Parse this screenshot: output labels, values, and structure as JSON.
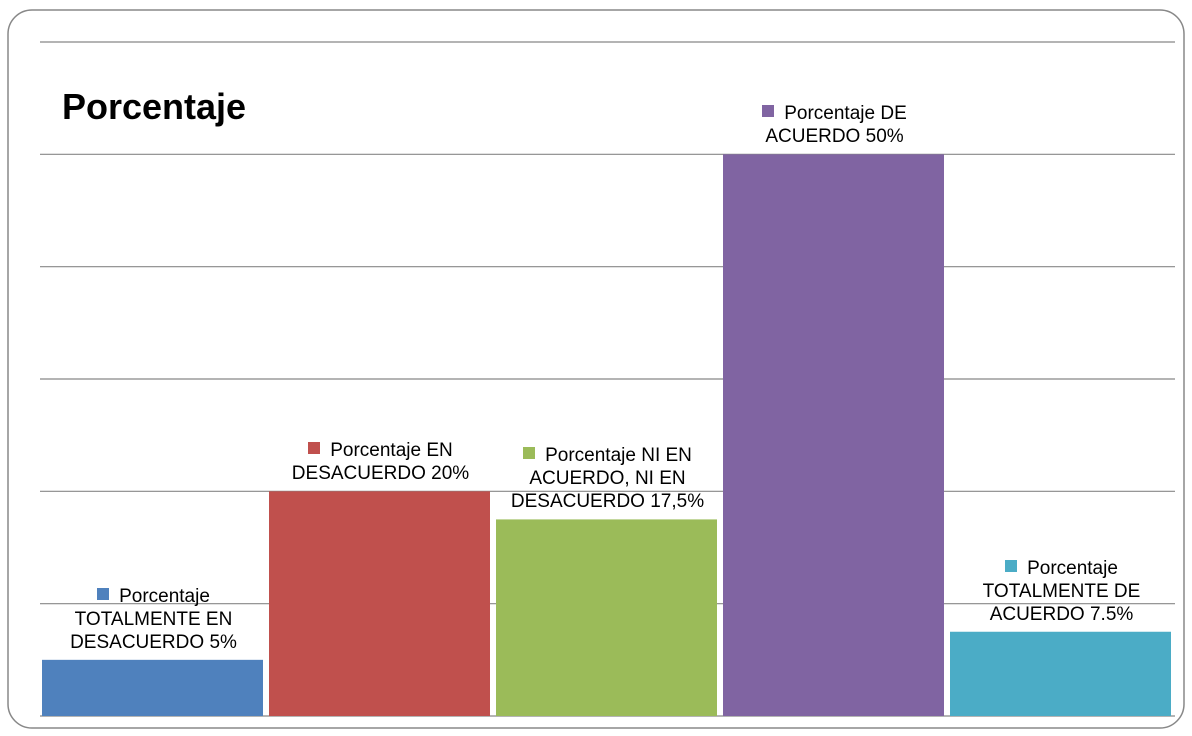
{
  "chart_data": {
    "type": "bar",
    "title": "Porcentaje",
    "categories": [
      "TOTALMENTE EN DESACUERDO",
      "EN DESACUERDO",
      "NI EN ACUERDO, NI EN DESACUERDO",
      "DE ACUERDO",
      "TOTALMENTE DE ACUERDO"
    ],
    "series": [
      {
        "name": "Porcentaje",
        "values": [
          5,
          20,
          17.5,
          50,
          7.5
        ],
        "value_labels": [
          "5%",
          "20%",
          "17,5%",
          "50%",
          "7.5%"
        ],
        "colors": [
          "#4f81bd",
          "#c0504d",
          "#9bbb59",
          "#8064a2",
          "#4bacc6"
        ]
      }
    ],
    "ylim": [
      0,
      60
    ],
    "yticks": [
      0,
      10,
      20,
      30,
      40,
      50,
      60
    ],
    "grid": true
  }
}
